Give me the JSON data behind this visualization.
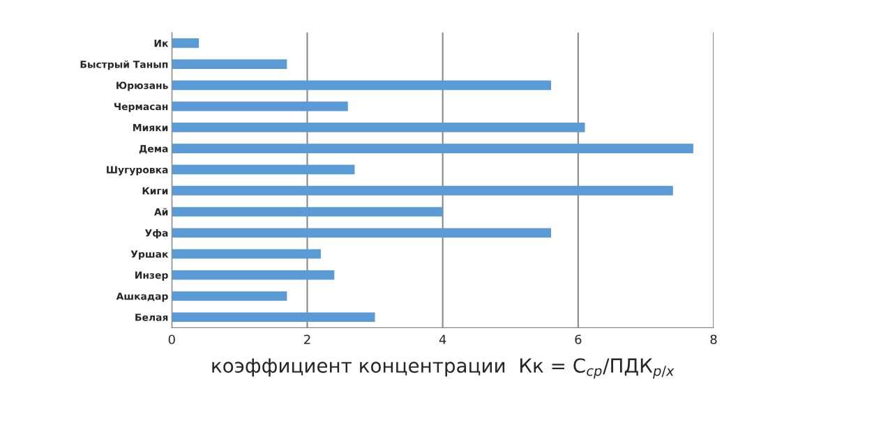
{
  "chart_data": {
    "type": "bar",
    "orientation": "horizontal",
    "categories": [
      "Ик",
      "Быстрый Танып",
      "Юрюзань",
      "Чермасан",
      "Мияки",
      "Дема",
      "Шугуровка",
      "Киги",
      "Ай",
      "Уфа",
      "Уршак",
      "Инзер",
      "Ашкадар",
      "Белая"
    ],
    "values": [
      0.4,
      1.7,
      5.6,
      2.6,
      6.1,
      7.7,
      2.7,
      7.4,
      4.0,
      5.6,
      2.2,
      2.4,
      1.7,
      3.0
    ],
    "color": "#5b9bd5",
    "xlim": [
      0,
      8
    ],
    "xticks": [
      0,
      2,
      4,
      6,
      8
    ],
    "xlabel": "коэффициент концентрации  Кк = C$_{ср}$/ПДК$_{р/х}$",
    "grid": "x"
  }
}
